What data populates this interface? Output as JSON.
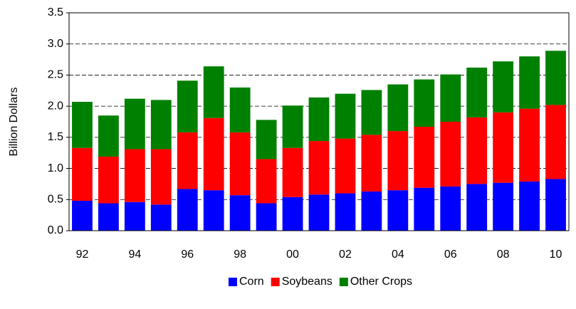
{
  "chart_data": {
    "type": "stacked-bar",
    "y_label": "Billion Dollars",
    "categories": [
      "92",
      null,
      "94",
      null,
      "96",
      null,
      "98",
      null,
      "00",
      null,
      "02",
      null,
      "04",
      null,
      "06",
      null,
      "08",
      null,
      "10"
    ],
    "series": [
      {
        "name": "Corn",
        "color": "#0000ff",
        "values": [
          0.48,
          0.44,
          0.46,
          0.42,
          0.67,
          0.65,
          0.57,
          0.44,
          0.54,
          0.58,
          0.6,
          0.63,
          0.65,
          0.69,
          0.71,
          0.75,
          0.77,
          0.79,
          0.83
        ]
      },
      {
        "name": "Soybeans",
        "color": "#ff0000",
        "values": [
          0.85,
          0.75,
          0.85,
          0.89,
          0.91,
          1.16,
          1.01,
          0.71,
          0.79,
          0.86,
          0.88,
          0.91,
          0.95,
          0.98,
          1.04,
          1.07,
          1.13,
          1.17,
          1.19
        ]
      },
      {
        "name": "Other Crops",
        "color": "#008000",
        "values": [
          0.74,
          0.66,
          0.81,
          0.79,
          0.83,
          0.83,
          0.72,
          0.63,
          0.68,
          0.7,
          0.72,
          0.72,
          0.75,
          0.76,
          0.76,
          0.8,
          0.82,
          0.84,
          0.87
        ]
      }
    ],
    "ylim": [
      0,
      3.5
    ],
    "yticks": [
      {
        "value": 0,
        "label": "0.0"
      },
      0.5,
      {
        "value": 1,
        "label": "1.0"
      },
      1.5,
      {
        "value": 2,
        "label": "2.0"
      },
      2.5,
      {
        "value": 3,
        "label": "3.0"
      },
      3.5
    ],
    "grid": true,
    "legend": "bottom"
  }
}
